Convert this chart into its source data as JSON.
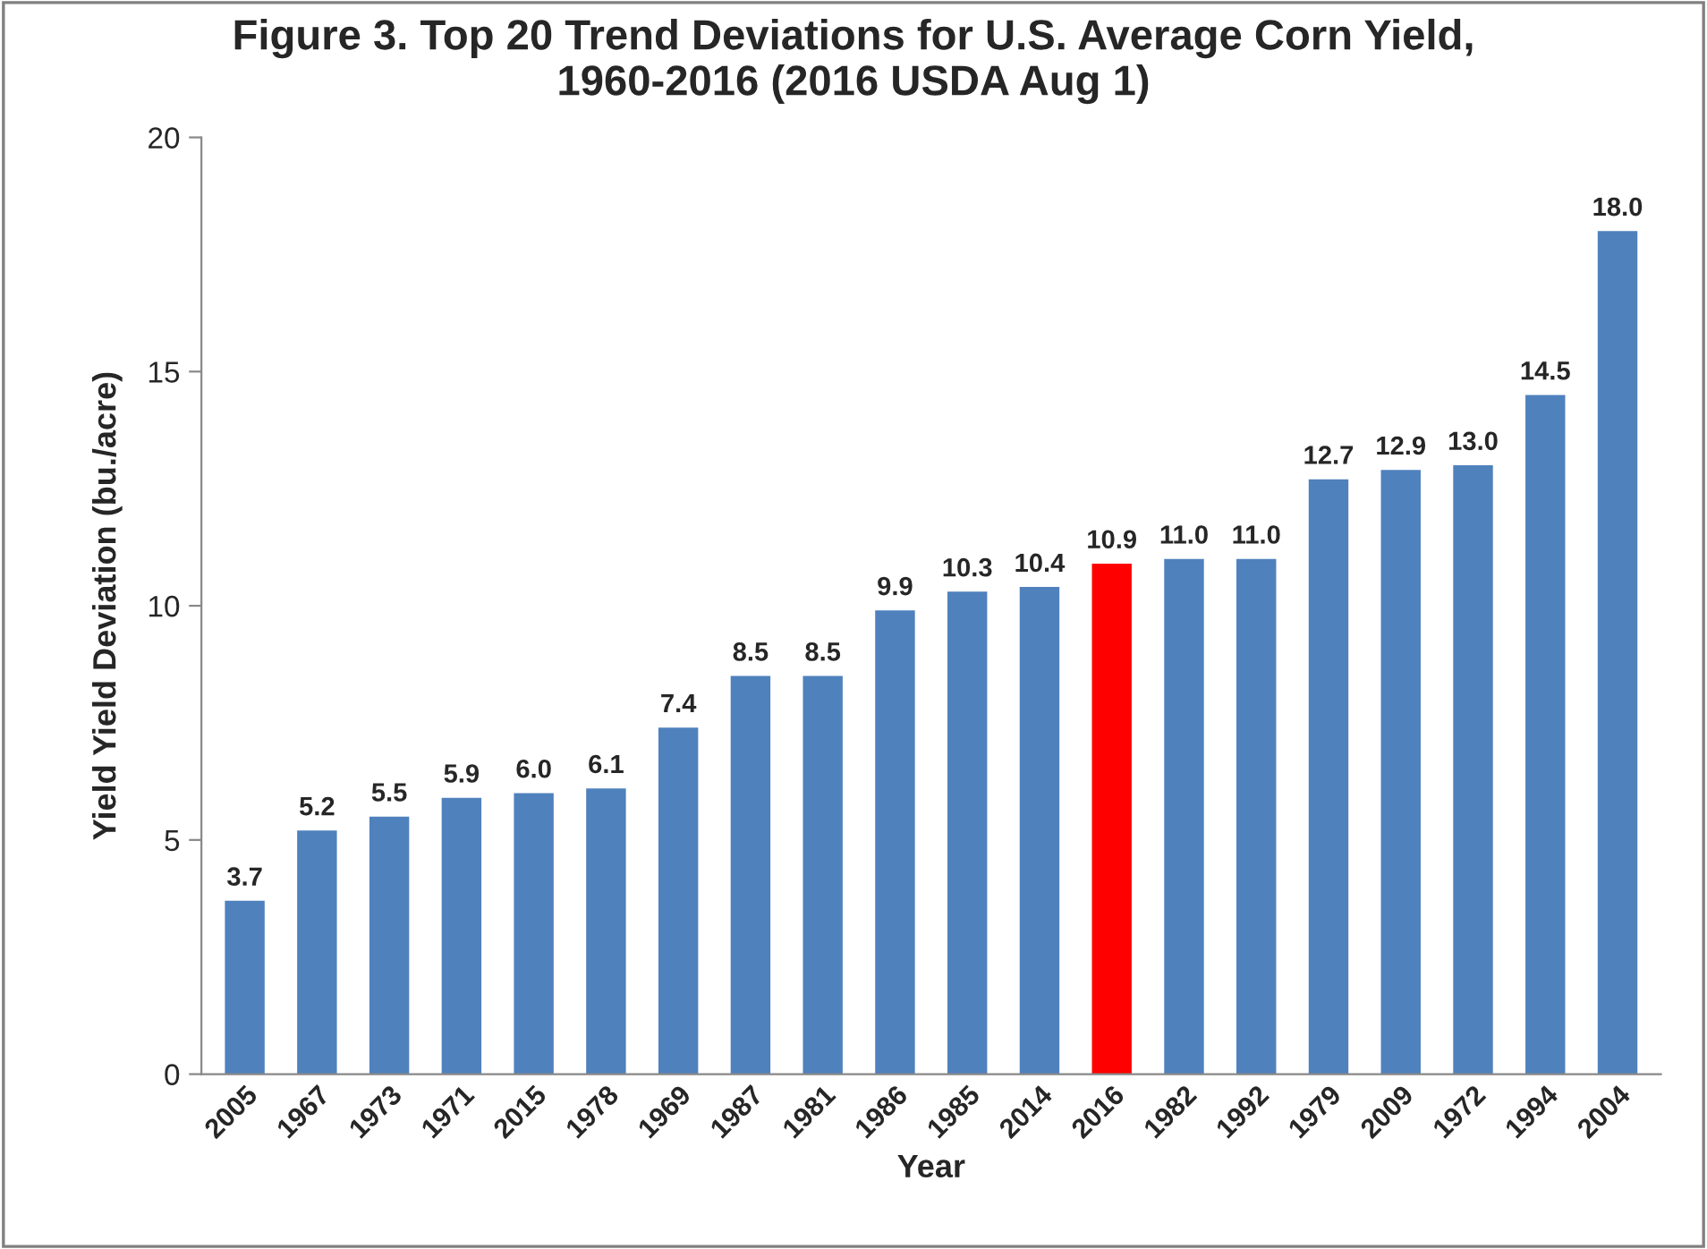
{
  "chart_data": {
    "type": "bar",
    "title": "Figure 3. Top 20 Trend Deviations for U.S. Average Corn Yield,\n1960-2016 (2016 USDA Aug 1)",
    "xlabel": "Year",
    "ylabel": "Yield Yield Deviation (bu./acre)",
    "categories": [
      "2005",
      "1967",
      "1973",
      "1971",
      "2015",
      "1978",
      "1969",
      "1987",
      "1981",
      "1986",
      "1985",
      "2014",
      "2016",
      "1982",
      "1992",
      "1979",
      "2009",
      "1972",
      "1994",
      "2004"
    ],
    "values": [
      3.7,
      5.2,
      5.5,
      5.9,
      6.0,
      6.1,
      7.4,
      8.5,
      8.5,
      9.9,
      10.3,
      10.4,
      10.9,
      11.0,
      11.0,
      12.7,
      12.9,
      13.0,
      14.5,
      18.0
    ],
    "colors": [
      "#4f81bd",
      "#4f81bd",
      "#4f81bd",
      "#4f81bd",
      "#4f81bd",
      "#4f81bd",
      "#4f81bd",
      "#4f81bd",
      "#4f81bd",
      "#4f81bd",
      "#4f81bd",
      "#4f81bd",
      "#ff0000",
      "#4f81bd",
      "#4f81bd",
      "#4f81bd",
      "#4f81bd",
      "#4f81bd",
      "#4f81bd",
      "#4f81bd"
    ],
    "value_labels": [
      "3.7",
      "5.2",
      "5.5",
      "5.9",
      "6.0",
      "6.1",
      "7.4",
      "8.5",
      "8.5",
      "9.9",
      "10.3",
      "10.4",
      "10.9",
      "11.0",
      "11.0",
      "12.7",
      "12.9",
      "13.0",
      "14.5",
      "18.0"
    ],
    "ylim": [
      0,
      20
    ],
    "yticks": [
      0,
      5,
      10,
      15,
      20
    ],
    "grid": false
  }
}
